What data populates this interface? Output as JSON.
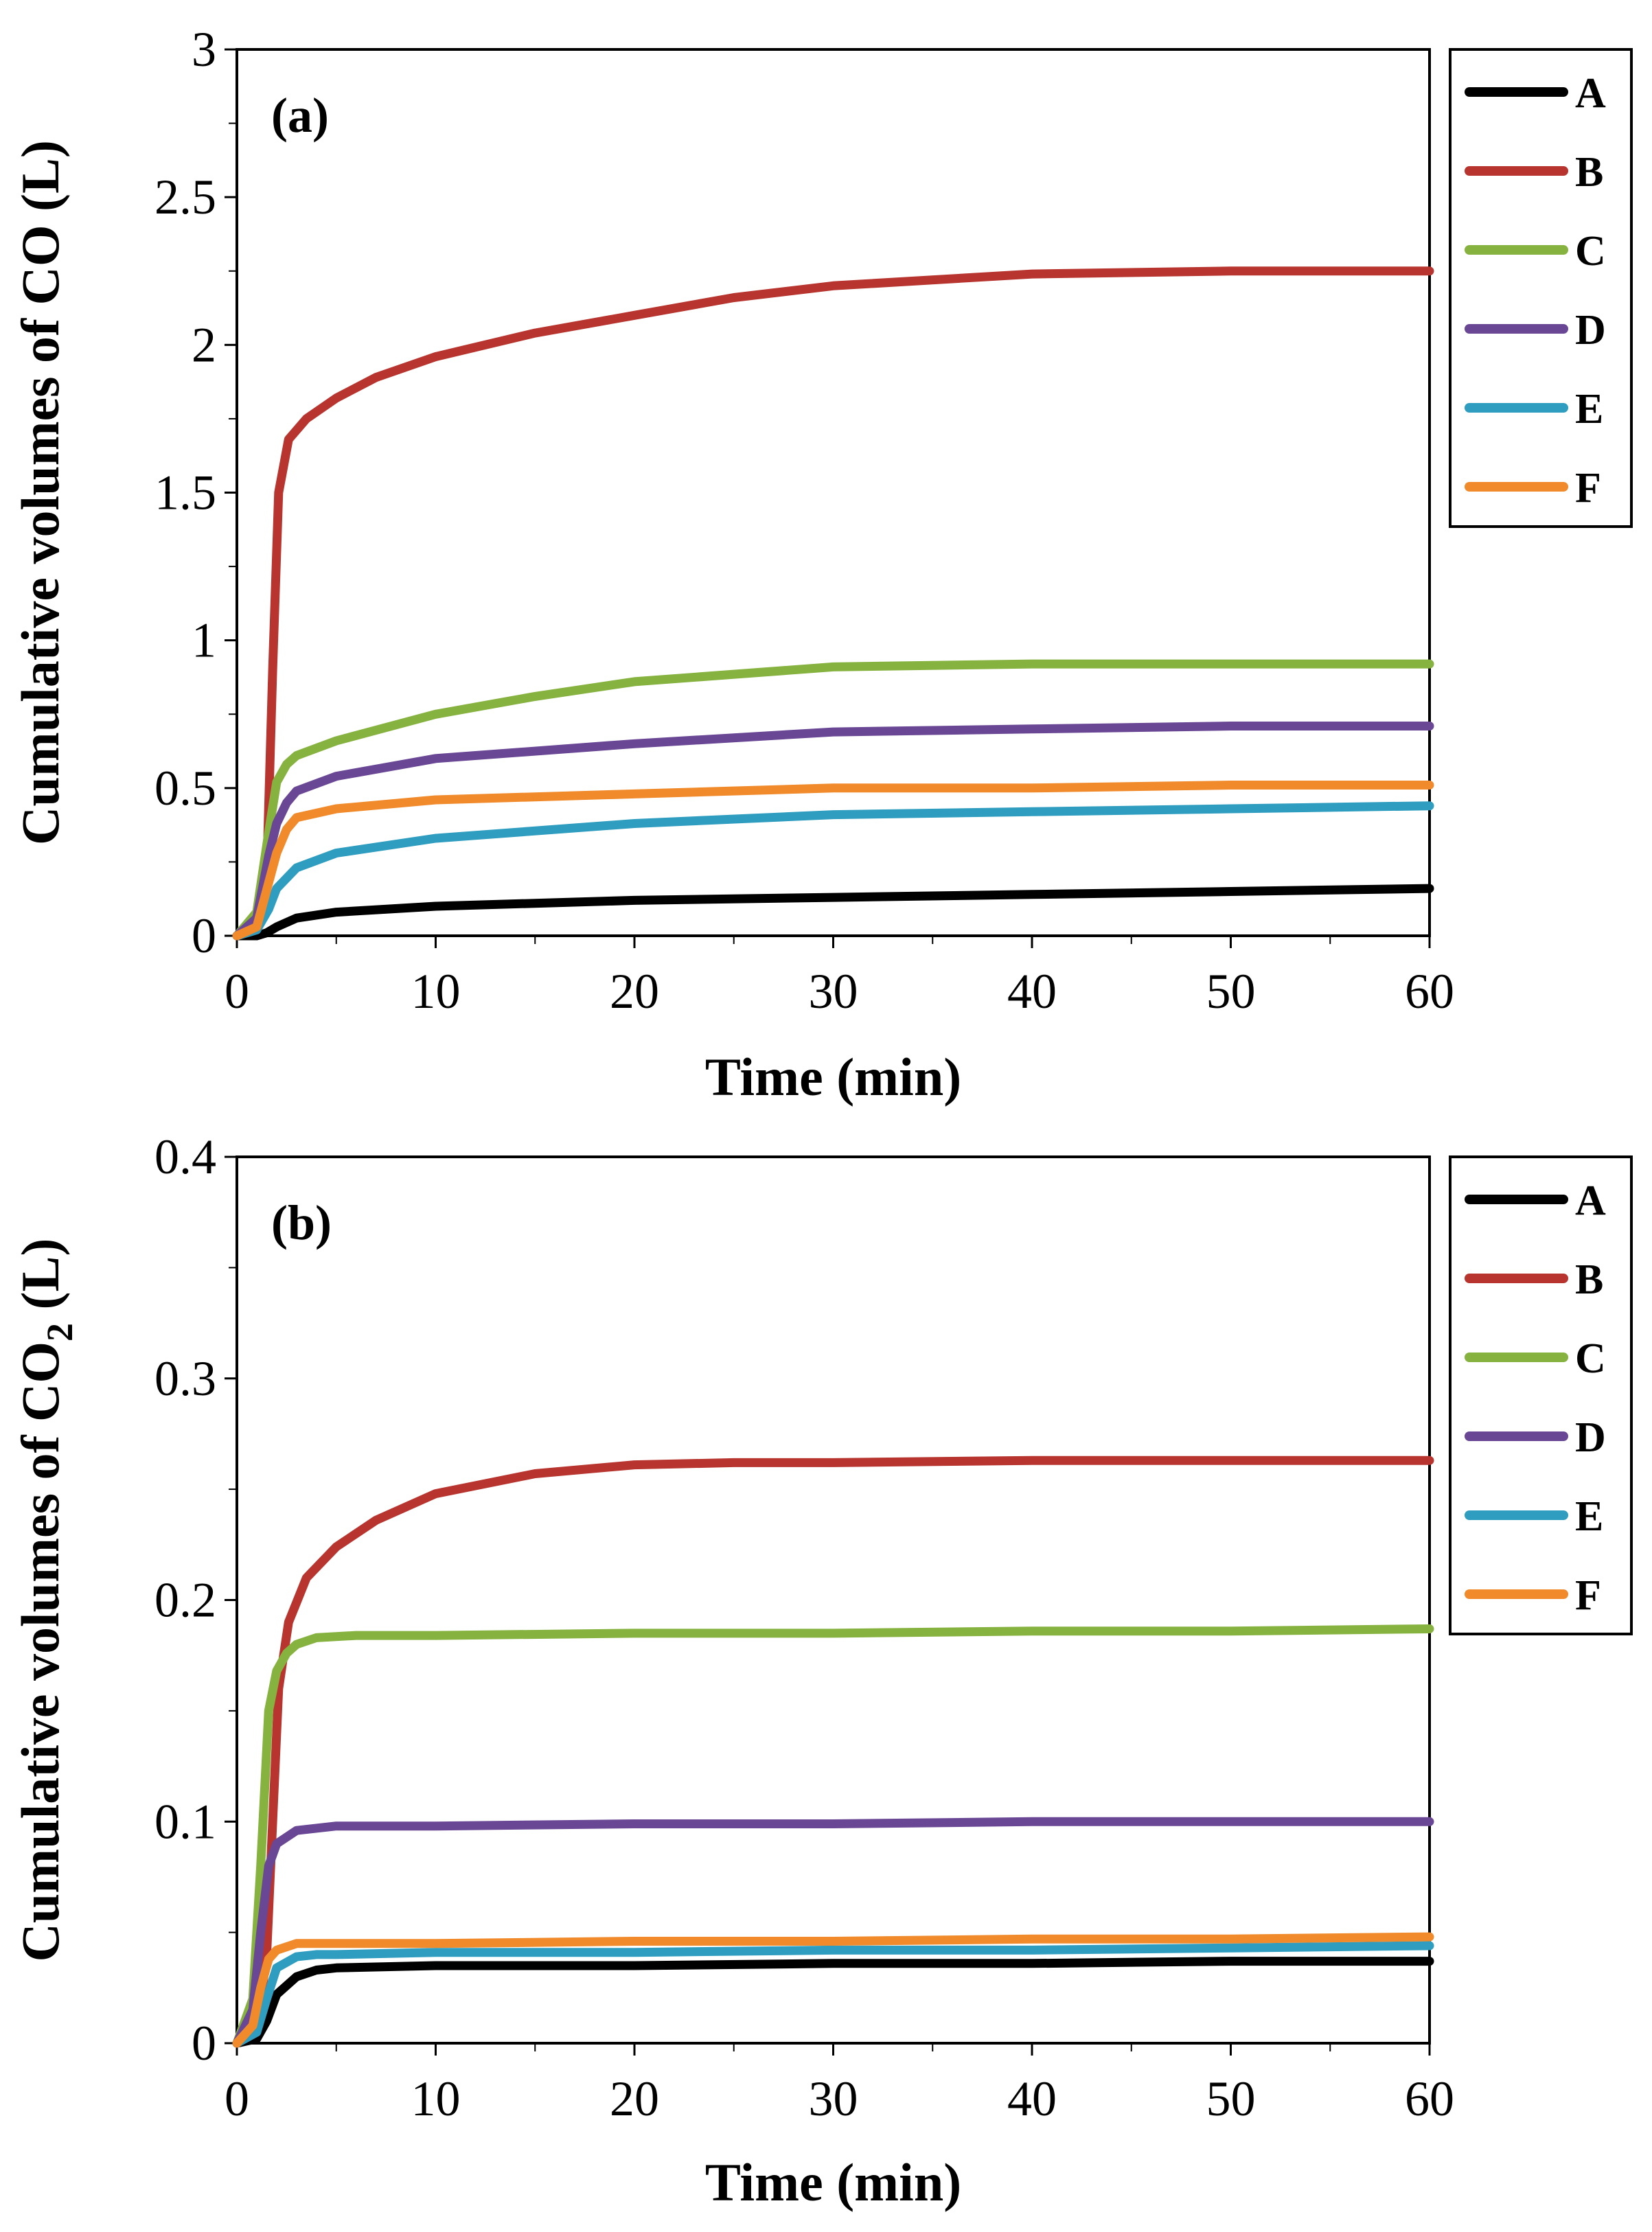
{
  "chart_data": [
    {
      "type": "line",
      "panel_label": "(a)",
      "xlabel": "Time (min)",
      "ylabel_prefix": "Cumulative volumes of CO (L)",
      "ylabel_subscript": "",
      "ylabel_suffix": "",
      "xlim": [
        0,
        60
      ],
      "ylim": [
        0,
        3
      ],
      "x_ticks": [
        "0",
        "10",
        "20",
        "30",
        "40",
        "50",
        "60"
      ],
      "y_ticks": [
        "0",
        "0.5",
        "1",
        "1.5",
        "2",
        "2.5",
        "3"
      ],
      "legend_position": "outside-top-right",
      "grid": false,
      "series": [
        {
          "name": "A",
          "color": "#000000",
          "points": [
            [
              0,
              0
            ],
            [
              1,
              0
            ],
            [
              1.5,
              0.01
            ],
            [
              2,
              0.03
            ],
            [
              3,
              0.06
            ],
            [
              5,
              0.08
            ],
            [
              10,
              0.1
            ],
            [
              20,
              0.12
            ],
            [
              30,
              0.13
            ],
            [
              40,
              0.14
            ],
            [
              50,
              0.15
            ],
            [
              60,
              0.16
            ]
          ]
        },
        {
          "name": "B",
          "color": "#B8342F",
          "points": [
            [
              0,
              0
            ],
            [
              1,
              0.02
            ],
            [
              1.5,
              0.2
            ],
            [
              1.8,
              0.9
            ],
            [
              2.1,
              1.5
            ],
            [
              2.6,
              1.68
            ],
            [
              3.5,
              1.75
            ],
            [
              5,
              1.82
            ],
            [
              7,
              1.89
            ],
            [
              10,
              1.96
            ],
            [
              15,
              2.04
            ],
            [
              20,
              2.1
            ],
            [
              25,
              2.16
            ],
            [
              30,
              2.2
            ],
            [
              40,
              2.24
            ],
            [
              50,
              2.25
            ],
            [
              60,
              2.25
            ]
          ]
        },
        {
          "name": "C",
          "color": "#86B23F",
          "points": [
            [
              0,
              0
            ],
            [
              1,
              0.08
            ],
            [
              1.6,
              0.35
            ],
            [
              2,
              0.52
            ],
            [
              2.5,
              0.58
            ],
            [
              3,
              0.61
            ],
            [
              5,
              0.66
            ],
            [
              10,
              0.75
            ],
            [
              15,
              0.81
            ],
            [
              20,
              0.86
            ],
            [
              30,
              0.91
            ],
            [
              40,
              0.92
            ],
            [
              50,
              0.92
            ],
            [
              60,
              0.92
            ]
          ]
        },
        {
          "name": "D",
          "color": "#6A4795",
          "points": [
            [
              0,
              0
            ],
            [
              1,
              0.06
            ],
            [
              1.6,
              0.27
            ],
            [
              2,
              0.38
            ],
            [
              2.5,
              0.45
            ],
            [
              3,
              0.49
            ],
            [
              5,
              0.54
            ],
            [
              10,
              0.6
            ],
            [
              20,
              0.65
            ],
            [
              30,
              0.69
            ],
            [
              40,
              0.7
            ],
            [
              50,
              0.71
            ],
            [
              60,
              0.71
            ]
          ]
        },
        {
          "name": "E",
          "color": "#2E9DBF",
          "points": [
            [
              0,
              0
            ],
            [
              1,
              0.02
            ],
            [
              1.6,
              0.09
            ],
            [
              2,
              0.16
            ],
            [
              3,
              0.23
            ],
            [
              5,
              0.28
            ],
            [
              10,
              0.33
            ],
            [
              20,
              0.38
            ],
            [
              30,
              0.41
            ],
            [
              40,
              0.42
            ],
            [
              50,
              0.43
            ],
            [
              60,
              0.44
            ]
          ]
        },
        {
          "name": "F",
          "color": "#F08A2B",
          "points": [
            [
              0,
              0
            ],
            [
              1,
              0.03
            ],
            [
              1.6,
              0.18
            ],
            [
              2,
              0.28
            ],
            [
              2.5,
              0.36
            ],
            [
              3,
              0.4
            ],
            [
              5,
              0.43
            ],
            [
              10,
              0.46
            ],
            [
              20,
              0.48
            ],
            [
              30,
              0.5
            ],
            [
              40,
              0.5
            ],
            [
              50,
              0.51
            ],
            [
              60,
              0.51
            ]
          ]
        }
      ]
    },
    {
      "type": "line",
      "panel_label": "(b)",
      "xlabel": "Time (min)",
      "ylabel_prefix": "Cumulative volumes of CO",
      "ylabel_subscript": "2",
      "ylabel_suffix": " (L)",
      "xlim": [
        0,
        60
      ],
      "ylim": [
        0,
        0.4
      ],
      "x_ticks": [
        "0",
        "10",
        "20",
        "30",
        "40",
        "50",
        "60"
      ],
      "y_ticks": [
        "0",
        "0.1",
        "0.2",
        "0.3",
        "0.4"
      ],
      "legend_position": "outside-top-right",
      "grid": false,
      "series": [
        {
          "name": "A",
          "color": "#000000",
          "points": [
            [
              0,
              0
            ],
            [
              1,
              0.002
            ],
            [
              1.5,
              0.01
            ],
            [
              2,
              0.022
            ],
            [
              3,
              0.03
            ],
            [
              4,
              0.033
            ],
            [
              5,
              0.034
            ],
            [
              10,
              0.035
            ],
            [
              20,
              0.035
            ],
            [
              30,
              0.036
            ],
            [
              40,
              0.036
            ],
            [
              50,
              0.037
            ],
            [
              60,
              0.037
            ]
          ]
        },
        {
          "name": "B",
          "color": "#B8342F",
          "points": [
            [
              0,
              0
            ],
            [
              1,
              0.005
            ],
            [
              1.5,
              0.04
            ],
            [
              1.8,
              0.1
            ],
            [
              2.1,
              0.16
            ],
            [
              2.6,
              0.19
            ],
            [
              3.5,
              0.21
            ],
            [
              5,
              0.224
            ],
            [
              7,
              0.236
            ],
            [
              10,
              0.248
            ],
            [
              15,
              0.257
            ],
            [
              20,
              0.261
            ],
            [
              25,
              0.262
            ],
            [
              30,
              0.262
            ],
            [
              40,
              0.263
            ],
            [
              50,
              0.263
            ],
            [
              60,
              0.263
            ]
          ]
        },
        {
          "name": "C",
          "color": "#86B23F",
          "points": [
            [
              0,
              0
            ],
            [
              0.8,
              0.02
            ],
            [
              1.2,
              0.08
            ],
            [
              1.6,
              0.15
            ],
            [
              2,
              0.168
            ],
            [
              2.5,
              0.176
            ],
            [
              3,
              0.18
            ],
            [
              4,
              0.183
            ],
            [
              6,
              0.184
            ],
            [
              10,
              0.184
            ],
            [
              20,
              0.185
            ],
            [
              30,
              0.185
            ],
            [
              40,
              0.186
            ],
            [
              50,
              0.186
            ],
            [
              60,
              0.187
            ]
          ]
        },
        {
          "name": "D",
          "color": "#6A4795",
          "points": [
            [
              0,
              0
            ],
            [
              0.8,
              0.015
            ],
            [
              1.2,
              0.05
            ],
            [
              1.6,
              0.08
            ],
            [
              2,
              0.09
            ],
            [
              3,
              0.096
            ],
            [
              4,
              0.097
            ],
            [
              5,
              0.098
            ],
            [
              10,
              0.098
            ],
            [
              20,
              0.099
            ],
            [
              30,
              0.099
            ],
            [
              40,
              0.1
            ],
            [
              50,
              0.1
            ],
            [
              60,
              0.1
            ]
          ]
        },
        {
          "name": "E",
          "color": "#2E9DBF",
          "points": [
            [
              0,
              0
            ],
            [
              1,
              0.005
            ],
            [
              1.5,
              0.02
            ],
            [
              2,
              0.034
            ],
            [
              3,
              0.039
            ],
            [
              4,
              0.04
            ],
            [
              5,
              0.04
            ],
            [
              10,
              0.041
            ],
            [
              20,
              0.041
            ],
            [
              30,
              0.042
            ],
            [
              40,
              0.042
            ],
            [
              50,
              0.043
            ],
            [
              60,
              0.044
            ]
          ]
        },
        {
          "name": "F",
          "color": "#F08A2B",
          "points": [
            [
              0,
              0
            ],
            [
              0.8,
              0.008
            ],
            [
              1.2,
              0.025
            ],
            [
              1.6,
              0.038
            ],
            [
              2,
              0.042
            ],
            [
              3,
              0.045
            ],
            [
              4,
              0.045
            ],
            [
              10,
              0.045
            ],
            [
              20,
              0.046
            ],
            [
              30,
              0.046
            ],
            [
              40,
              0.047
            ],
            [
              50,
              0.047
            ],
            [
              60,
              0.048
            ]
          ]
        }
      ]
    }
  ]
}
